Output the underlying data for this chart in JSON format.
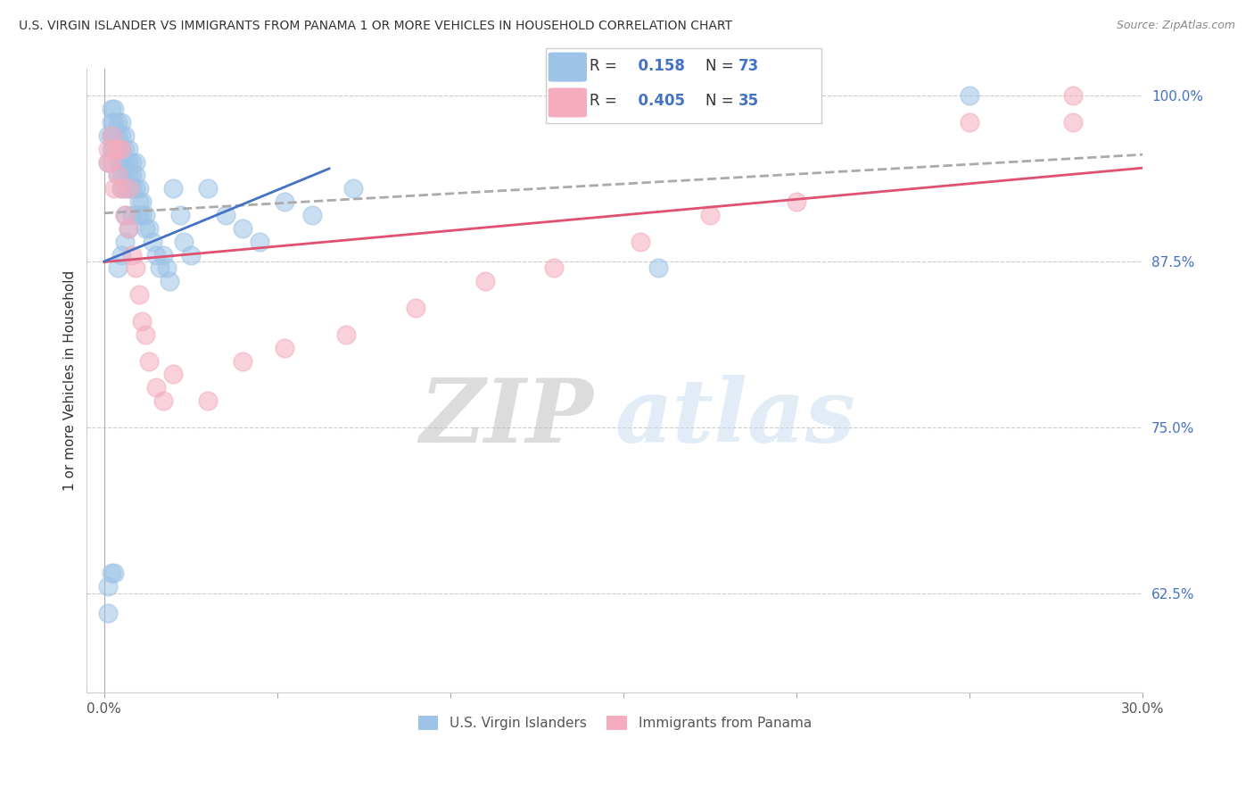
{
  "title": "U.S. VIRGIN ISLANDER VS IMMIGRANTS FROM PANAMA 1 OR MORE VEHICLES IN HOUSEHOLD CORRELATION CHART",
  "source": "Source: ZipAtlas.com",
  "ylabel": "1 or more Vehicles in Household",
  "xlim": [
    0.0,
    0.3
  ],
  "ylim": [
    0.55,
    1.02
  ],
  "xticks": [
    0.0,
    0.05,
    0.1,
    0.15,
    0.2,
    0.25,
    0.3
  ],
  "xtick_labels": [
    "0.0%",
    "",
    "",
    "",
    "",
    "",
    "30.0%"
  ],
  "yticks": [
    0.625,
    0.75,
    0.875,
    1.0
  ],
  "ytick_labels": [
    "62.5%",
    "75.0%",
    "87.5%",
    "100.0%"
  ],
  "blue_R": 0.158,
  "blue_N": 73,
  "pink_R": 0.405,
  "pink_N": 35,
  "blue_color": "#9DC3E6",
  "pink_color": "#F4ACBE",
  "blue_line_color": "#4472C4",
  "pink_line_color": "#E05070",
  "watermark_zip": "ZIP",
  "watermark_atlas": "atlas",
  "legend_label_blue": "U.S. Virgin Islanders",
  "legend_label_pink": "Immigrants from Panama",
  "blue_x": [
    0.001,
    0.001,
    0.002,
    0.002,
    0.002,
    0.002,
    0.003,
    0.003,
    0.003,
    0.003,
    0.004,
    0.004,
    0.004,
    0.004,
    0.004,
    0.005,
    0.005,
    0.005,
    0.005,
    0.005,
    0.005,
    0.006,
    0.006,
    0.006,
    0.006,
    0.006,
    0.006,
    0.007,
    0.007,
    0.007,
    0.007,
    0.008,
    0.008,
    0.008,
    0.009,
    0.009,
    0.009,
    0.01,
    0.01,
    0.01,
    0.011,
    0.011,
    0.012,
    0.012,
    0.013,
    0.014,
    0.015,
    0.016,
    0.017,
    0.018,
    0.019,
    0.02,
    0.022,
    0.023,
    0.025,
    0.03,
    0.035,
    0.04,
    0.045,
    0.052,
    0.06,
    0.072,
    0.001,
    0.001,
    0.002,
    0.003,
    0.004,
    0.005,
    0.006,
    0.007,
    0.008,
    0.16,
    0.25
  ],
  "blue_y": [
    0.97,
    0.95,
    0.99,
    0.98,
    0.97,
    0.96,
    0.99,
    0.98,
    0.97,
    0.96,
    0.98,
    0.97,
    0.96,
    0.95,
    0.94,
    0.98,
    0.97,
    0.96,
    0.95,
    0.94,
    0.93,
    0.97,
    0.96,
    0.95,
    0.94,
    0.93,
    0.91,
    0.96,
    0.95,
    0.94,
    0.93,
    0.95,
    0.94,
    0.93,
    0.95,
    0.94,
    0.93,
    0.93,
    0.92,
    0.91,
    0.92,
    0.91,
    0.91,
    0.9,
    0.9,
    0.89,
    0.88,
    0.87,
    0.88,
    0.87,
    0.86,
    0.93,
    0.91,
    0.89,
    0.88,
    0.93,
    0.91,
    0.9,
    0.89,
    0.92,
    0.91,
    0.93,
    0.63,
    0.61,
    0.64,
    0.64,
    0.87,
    0.88,
    0.89,
    0.9,
    0.91,
    0.87,
    1.0
  ],
  "pink_x": [
    0.001,
    0.001,
    0.002,
    0.002,
    0.003,
    0.003,
    0.004,
    0.004,
    0.005,
    0.005,
    0.006,
    0.007,
    0.007,
    0.008,
    0.009,
    0.01,
    0.011,
    0.012,
    0.013,
    0.015,
    0.017,
    0.02,
    0.03,
    0.04,
    0.052,
    0.07,
    0.09,
    0.11,
    0.13,
    0.155,
    0.175,
    0.2,
    0.25,
    0.28,
    0.28
  ],
  "pink_y": [
    0.96,
    0.95,
    0.97,
    0.95,
    0.96,
    0.93,
    0.96,
    0.94,
    0.96,
    0.93,
    0.91,
    0.93,
    0.9,
    0.88,
    0.87,
    0.85,
    0.83,
    0.82,
    0.8,
    0.78,
    0.77,
    0.79,
    0.77,
    0.8,
    0.81,
    0.82,
    0.84,
    0.86,
    0.87,
    0.89,
    0.91,
    0.92,
    0.98,
    1.0,
    0.98
  ]
}
